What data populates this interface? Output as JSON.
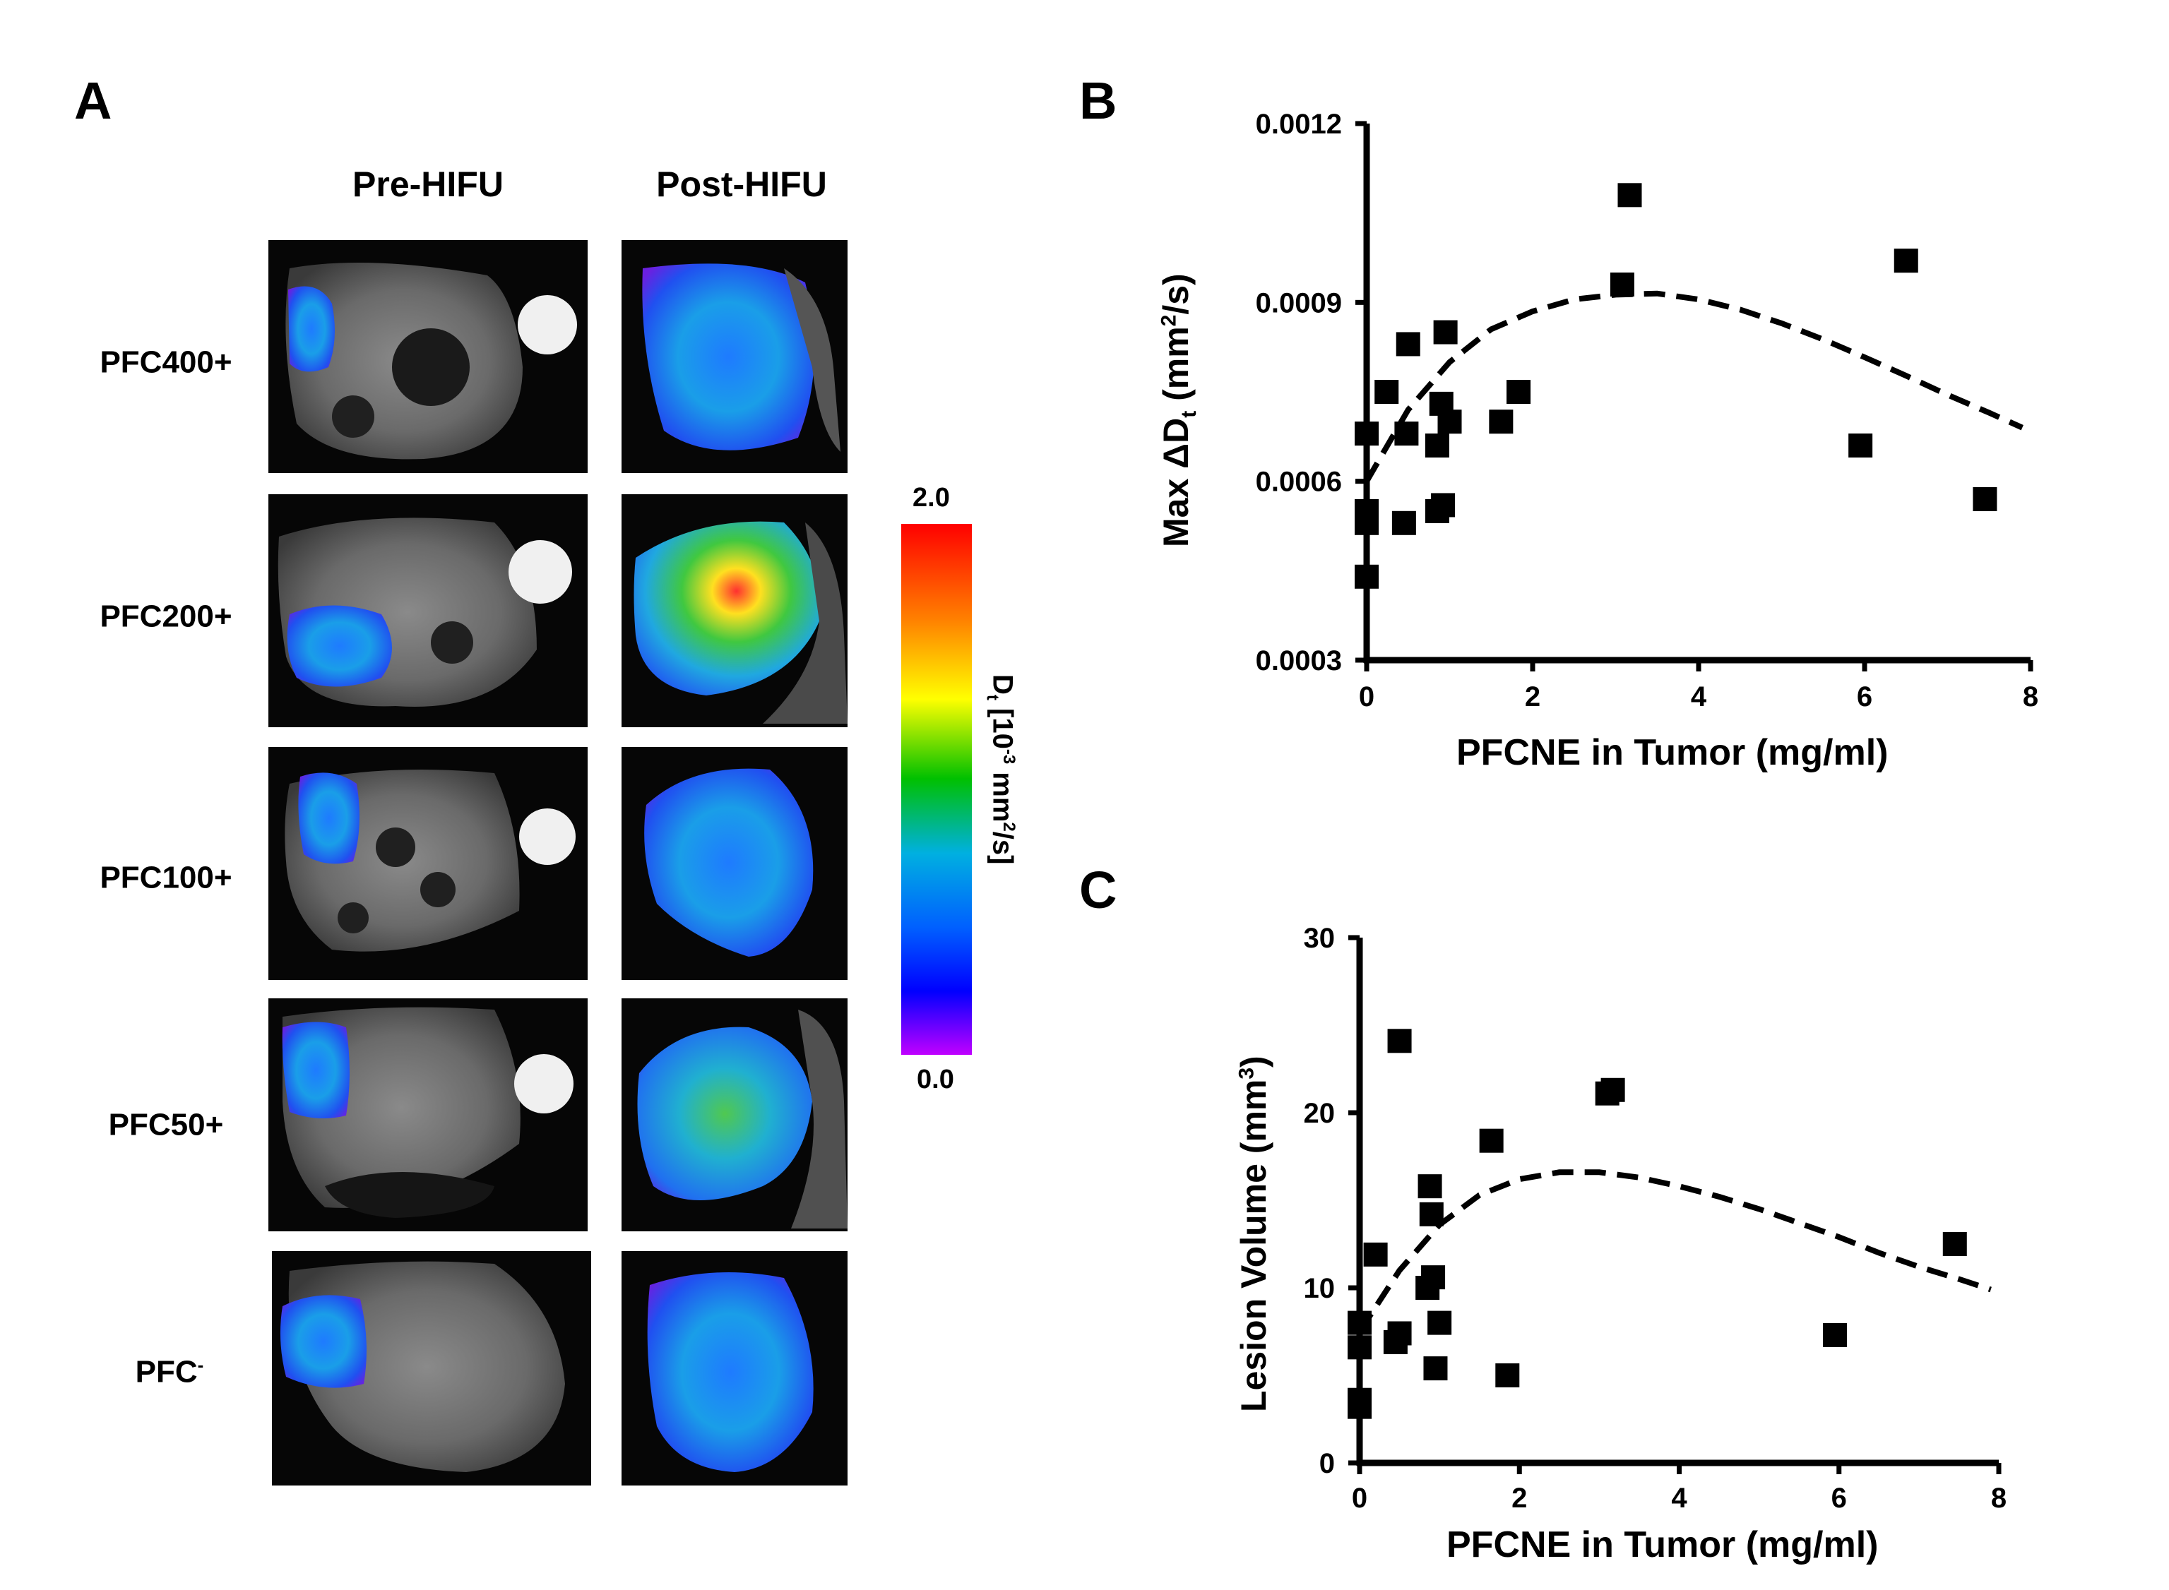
{
  "panels": {
    "A": {
      "letter": "A",
      "col_headers": [
        "Pre-HIFU",
        "Post-HIFU"
      ],
      "rows": [
        {
          "label": "PFC400+",
          "sup": ""
        },
        {
          "label": "PFC200+",
          "sup": ""
        },
        {
          "label": "PFC100+",
          "sup": ""
        },
        {
          "label": "PFC50+",
          "sup": ""
        },
        {
          "label": "PFC",
          "sup": "-"
        }
      ],
      "colorbar": {
        "max_label": "2.0",
        "min_label": "0.0",
        "label_main": "D",
        "label_sub": "t",
        "label_mid": " [10",
        "label_sup1": "-3",
        "label_units": " mm",
        "label_sup2": "2",
        "label_end": "/s]",
        "colors": [
          "#ff0000",
          "#ff7f00",
          "#ffff00",
          "#00c000",
          "#00b0e0",
          "#0060ff",
          "#0000ff",
          "#c000ff"
        ]
      }
    },
    "B": {
      "letter": "B",
      "ylabel_pre": "Max ΔD",
      "ylabel_sub": "t",
      "ylabel_mid": " (mm",
      "ylabel_sup": "2",
      "ylabel_end": "/s)",
      "xlabel": "PFCNE in Tumor (mg/ml)",
      "ytick_labels": [
        "0.0012",
        "0.0009",
        "0.0006",
        "0.0003"
      ],
      "xtick_labels": [
        "0",
        "2",
        "4",
        "6",
        "8"
      ]
    },
    "C": {
      "letter": "C",
      "ylabel_pre": "Lesion Volume (mm",
      "ylabel_sup": "3",
      "ylabel_end": ")",
      "xlabel": "PFCNE in Tumor (mg/ml)",
      "ytick_labels": [
        "30",
        "20",
        "10",
        "0"
      ],
      "xtick_labels": [
        "0",
        "2",
        "4",
        "6",
        "8"
      ]
    }
  },
  "chart_data": [
    {
      "id": "B",
      "type": "scatter",
      "xlabel": "PFCNE in Tumor (mg/ml)",
      "ylabel": "Max ΔDt (mm2/s)",
      "xlim": [
        0,
        8
      ],
      "ylim": [
        0.0003,
        0.0012
      ],
      "xticks": [
        0,
        2,
        4,
        6,
        8
      ],
      "yticks": [
        0.0003,
        0.0006,
        0.0009,
        0.0012
      ],
      "points": [
        {
          "x": 0.0,
          "y": 0.00044
        },
        {
          "x": 0.0,
          "y": 0.00053
        },
        {
          "x": 0.0,
          "y": 0.00055
        },
        {
          "x": 0.0,
          "y": 0.00068
        },
        {
          "x": 0.24,
          "y": 0.00075
        },
        {
          "x": 0.45,
          "y": 0.00053
        },
        {
          "x": 0.48,
          "y": 0.00068
        },
        {
          "x": 0.5,
          "y": 0.00083
        },
        {
          "x": 0.85,
          "y": 0.00055
        },
        {
          "x": 0.85,
          "y": 0.00066
        },
        {
          "x": 0.9,
          "y": 0.00073
        },
        {
          "x": 0.92,
          "y": 0.00056
        },
        {
          "x": 0.95,
          "y": 0.00085
        },
        {
          "x": 1.0,
          "y": 0.0007
        },
        {
          "x": 1.62,
          "y": 0.0007
        },
        {
          "x": 1.83,
          "y": 0.00075
        },
        {
          "x": 3.08,
          "y": 0.00093
        },
        {
          "x": 3.17,
          "y": 0.00108
        },
        {
          "x": 5.95,
          "y": 0.00066
        },
        {
          "x": 6.5,
          "y": 0.00097
        },
        {
          "x": 7.45,
          "y": 0.00057
        }
      ],
      "fit_curve": {
        "style": "dashed",
        "x": [
          0,
          0.5,
          1,
          1.5,
          2,
          2.5,
          3,
          3.5,
          4,
          4.5,
          5,
          5.5,
          6,
          6.5,
          7,
          7.5,
          7.9
        ],
        "y": [
          0.0006,
          0.00072,
          0.0008,
          0.000855,
          0.000885,
          0.000905,
          0.000913,
          0.000915,
          0.000905,
          0.000888,
          0.000865,
          0.000838,
          0.000808,
          0.000777,
          0.000745,
          0.000715,
          0.00069
        ]
      }
    },
    {
      "id": "C",
      "type": "scatter",
      "xlabel": "PFCNE in Tumor (mg/ml)",
      "ylabel": "Lesion Volume (mm3)",
      "xlim": [
        0,
        8
      ],
      "ylim": [
        0,
        30
      ],
      "xticks": [
        0,
        2,
        4,
        6,
        8
      ],
      "yticks": [
        0,
        10,
        20,
        30
      ],
      "points": [
        {
          "x": 0.0,
          "y": 3.2
        },
        {
          "x": 0.0,
          "y": 3.6
        },
        {
          "x": 0.0,
          "y": 6.6
        },
        {
          "x": 0.0,
          "y": 8.0
        },
        {
          "x": 0.2,
          "y": 11.9
        },
        {
          "x": 0.45,
          "y": 6.9
        },
        {
          "x": 0.5,
          "y": 7.4
        },
        {
          "x": 0.5,
          "y": 24.1
        },
        {
          "x": 0.85,
          "y": 10.0
        },
        {
          "x": 0.88,
          "y": 15.8
        },
        {
          "x": 0.9,
          "y": 14.2
        },
        {
          "x": 0.92,
          "y": 10.6
        },
        {
          "x": 0.95,
          "y": 5.4
        },
        {
          "x": 1.0,
          "y": 8.0
        },
        {
          "x": 1.65,
          "y": 18.4
        },
        {
          "x": 1.85,
          "y": 5.0
        },
        {
          "x": 3.1,
          "y": 21.1
        },
        {
          "x": 3.17,
          "y": 21.3
        },
        {
          "x": 5.95,
          "y": 7.3
        },
        {
          "x": 7.45,
          "y": 12.5
        }
      ],
      "fit_curve": {
        "style": "dashed",
        "x": [
          0,
          0.5,
          1,
          1.5,
          2,
          2.5,
          3,
          3.5,
          4,
          4.5,
          5,
          5.5,
          6,
          6.5,
          7,
          7.5,
          7.9
        ],
        "y": [
          7.5,
          11.0,
          13.6,
          15.3,
          16.2,
          16.6,
          16.6,
          16.3,
          15.8,
          15.2,
          14.5,
          13.7,
          12.9,
          12.0,
          11.2,
          10.5,
          9.9
        ]
      }
    }
  ]
}
